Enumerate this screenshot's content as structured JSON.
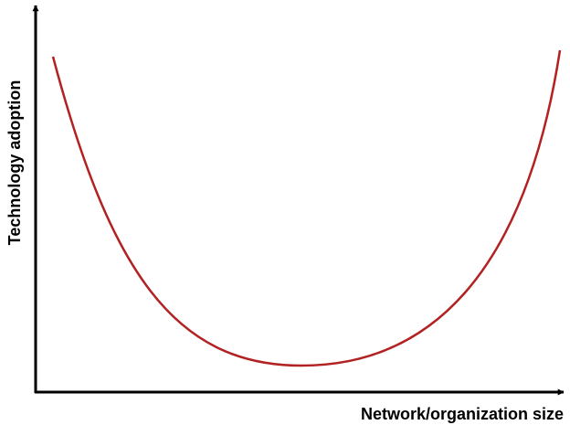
{
  "diagram": {
    "type": "conceptual-curve",
    "shape": "U-shaped",
    "xlabel": "Network/organization size",
    "ylabel": "Technology adoption",
    "colors": {
      "axes": "#000000",
      "curve": "#B22222"
    }
  }
}
